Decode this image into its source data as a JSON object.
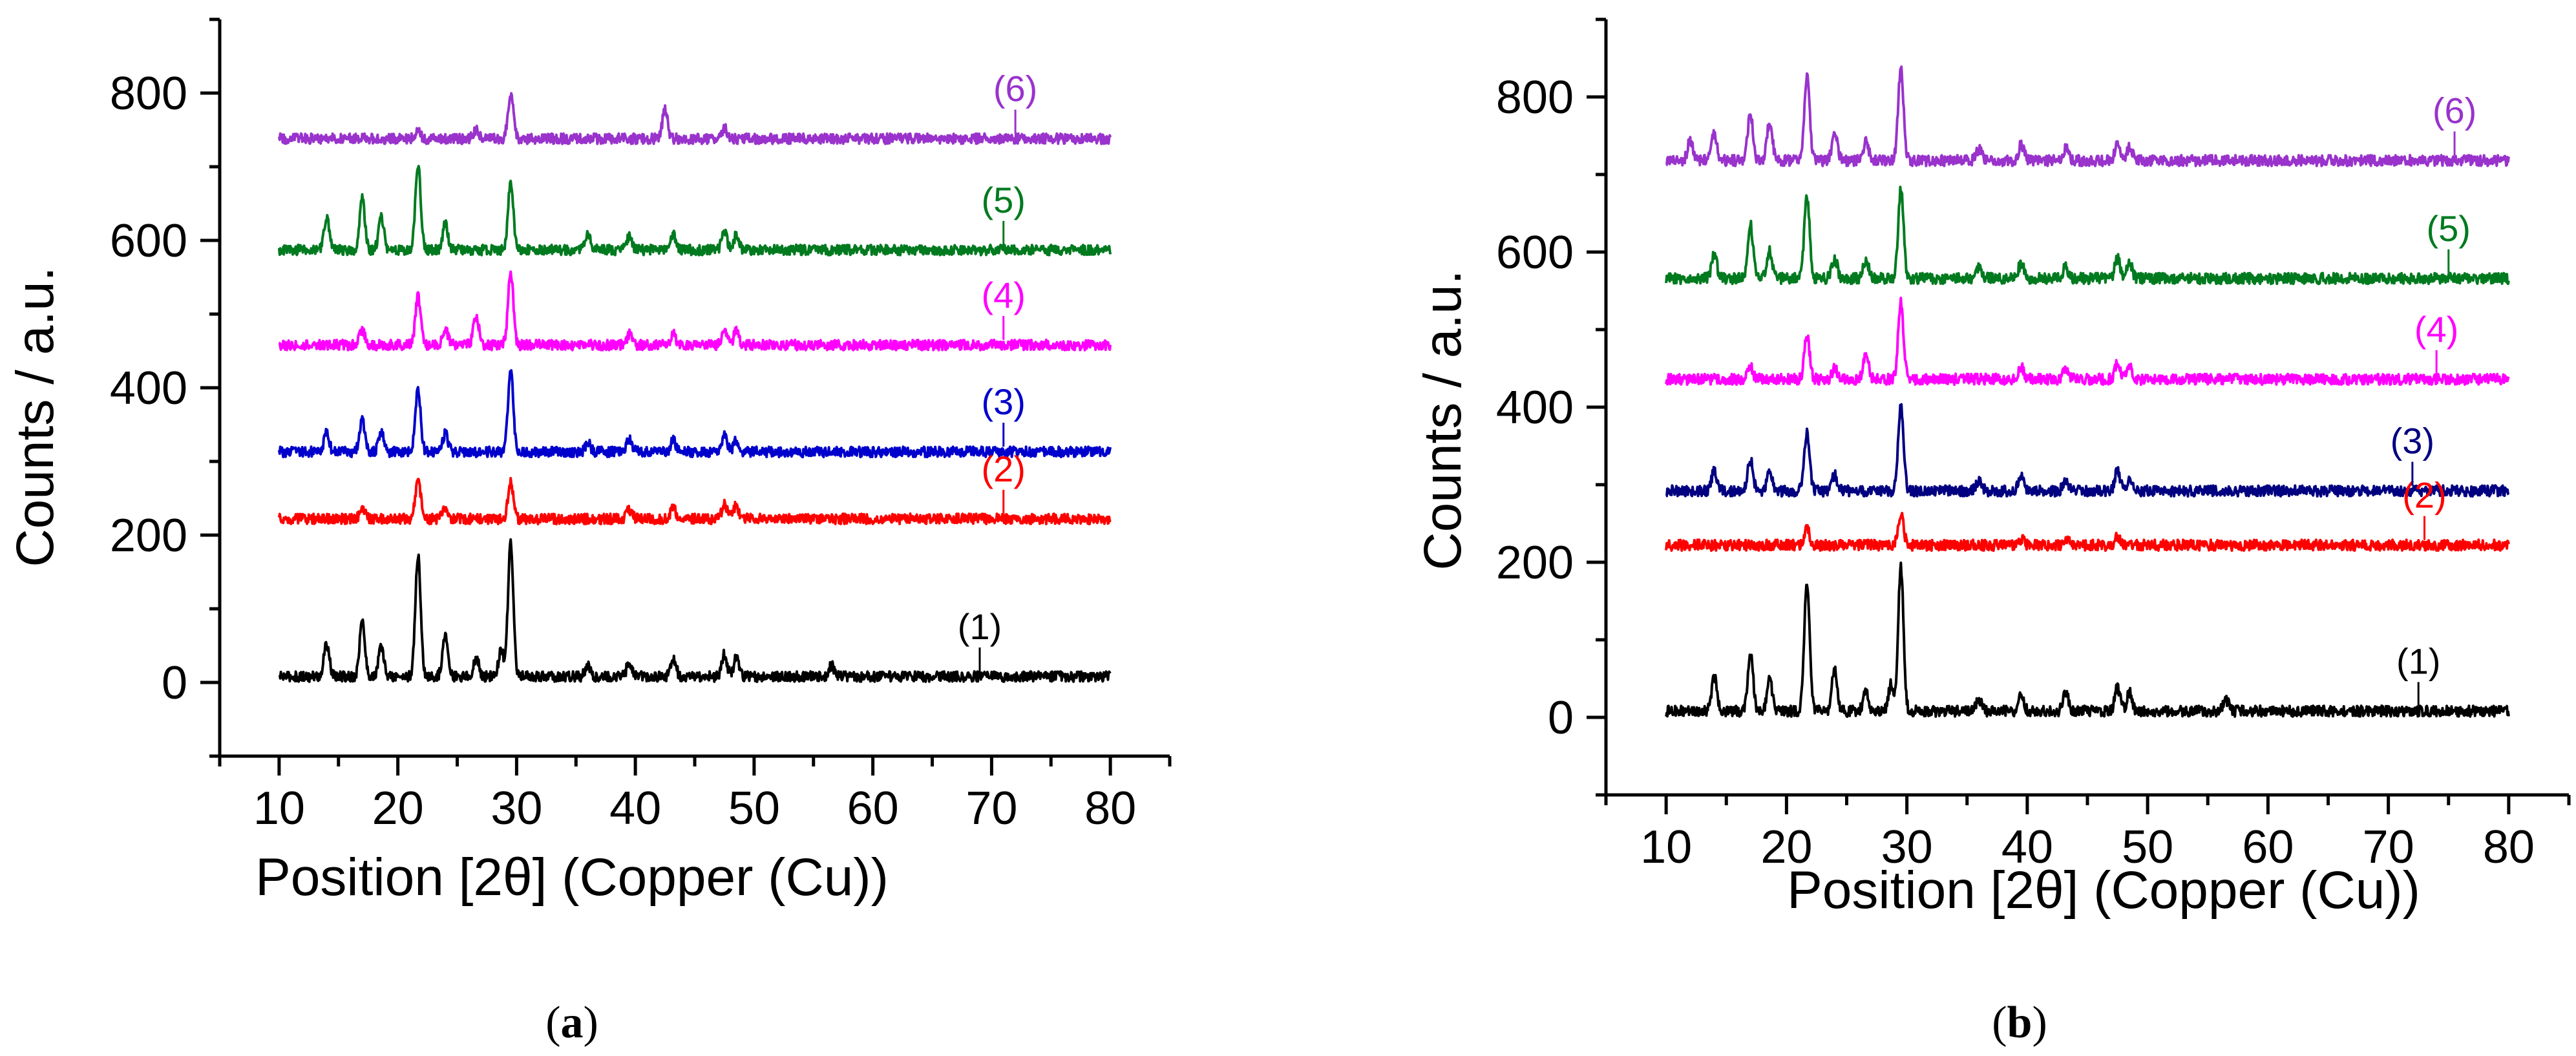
{
  "chart_data": [
    {
      "type": "line",
      "panel_label": "a",
      "title": "",
      "xlabel": "Position [2θ] (Copper (Cu))",
      "ylabel": "Counts / a.u.",
      "xlim": [
        5,
        85
      ],
      "ylim": [
        -100,
        900
      ],
      "x_ticks": [
        10,
        20,
        30,
        40,
        50,
        60,
        70,
        80
      ],
      "y_ticks": [
        0,
        200,
        400,
        600,
        800
      ],
      "grid": false,
      "series": [
        {
          "name": "(1)",
          "color": "#000000",
          "baseline": 8,
          "label_x": 69,
          "peaks": [
            [
              14,
              45
            ],
            [
              17,
              75
            ],
            [
              18.6,
              40
            ],
            [
              21.7,
              165
            ],
            [
              24,
              60
            ],
            [
              26.6,
              25
            ],
            [
              28.7,
              35
            ],
            [
              29.5,
              185
            ],
            [
              36,
              15
            ],
            [
              39.5,
              20
            ],
            [
              43.2,
              25
            ],
            [
              47.5,
              30
            ],
            [
              48.5,
              25
            ],
            [
              56.5,
              15
            ]
          ]
        },
        {
          "name": "(2)",
          "color": "#ff0000",
          "baseline": 222,
          "label_x": 71,
          "peaks": [
            [
              17,
              15
            ],
            [
              21.7,
              55
            ],
            [
              24,
              15
            ],
            [
              29.5,
              50
            ],
            [
              39.5,
              12
            ],
            [
              43.2,
              15
            ],
            [
              47.5,
              20
            ],
            [
              48.5,
              18
            ]
          ]
        },
        {
          "name": "(3)",
          "color": "#0000cc",
          "baseline": 313,
          "label_x": 71,
          "peaks": [
            [
              14,
              25
            ],
            [
              17,
              45
            ],
            [
              18.6,
              25
            ],
            [
              21.7,
              85
            ],
            [
              24,
              25
            ],
            [
              29.5,
              110
            ],
            [
              36,
              12
            ],
            [
              39.5,
              18
            ],
            [
              43.2,
              15
            ],
            [
              47.5,
              25
            ],
            [
              48.5,
              15
            ]
          ]
        },
        {
          "name": "(4)",
          "color": "#ff00ff",
          "baseline": 458,
          "label_x": 71,
          "peaks": [
            [
              17,
              20
            ],
            [
              21.7,
              65
            ],
            [
              24,
              20
            ],
            [
              26.6,
              40
            ],
            [
              29.5,
              100
            ],
            [
              39.5,
              15
            ],
            [
              43.2,
              15
            ],
            [
              47.5,
              20
            ],
            [
              48.5,
              18
            ]
          ]
        },
        {
          "name": "(5)",
          "color": "#007a1f",
          "baseline": 587,
          "label_x": 71,
          "peaks": [
            [
              14,
              45
            ],
            [
              17,
              70
            ],
            [
              18.6,
              45
            ],
            [
              21.7,
              115
            ],
            [
              24,
              35
            ],
            [
              29.5,
              90
            ],
            [
              36,
              20
            ],
            [
              39.5,
              20
            ],
            [
              43.2,
              20
            ],
            [
              47.5,
              25
            ],
            [
              48.5,
              20
            ]
          ]
        },
        {
          "name": "(6)",
          "color": "#9933cc",
          "baseline": 738,
          "label_x": 72,
          "peaks": [
            [
              21.7,
              12
            ],
            [
              26.6,
              12
            ],
            [
              29.5,
              60
            ],
            [
              42.5,
              40
            ],
            [
              47.5,
              15
            ]
          ]
        }
      ]
    },
    {
      "type": "line",
      "panel_label": "b",
      "title": "",
      "xlabel": "Position [2θ] (Copper (Cu))",
      "ylabel": "Counts / a.u.",
      "xlim": [
        5,
        85
      ],
      "ylim": [
        -100,
        900
      ],
      "x_ticks": [
        10,
        20,
        30,
        40,
        50,
        60,
        70,
        80
      ],
      "y_ticks": [
        0,
        200,
        400,
        600,
        800
      ],
      "grid": false,
      "series": [
        {
          "name": "(1)",
          "color": "#000000",
          "baseline": 8,
          "label_x": 72.5,
          "peaks": [
            [
              14,
              45
            ],
            [
              17,
              75
            ],
            [
              18.6,
              40
            ],
            [
              21.7,
              165
            ],
            [
              24,
              55
            ],
            [
              26.6,
              25
            ],
            [
              28.7,
              35
            ],
            [
              29.5,
              185
            ],
            [
              36,
              15
            ],
            [
              39.5,
              20
            ],
            [
              43.2,
              25
            ],
            [
              47.5,
              30
            ],
            [
              48.5,
              25
            ],
            [
              56.5,
              15
            ]
          ]
        },
        {
          "name": "(2)",
          "color": "#ff0000",
          "baseline": 222,
          "label_x": 73,
          "peaks": [
            [
              21.7,
              20
            ],
            [
              29.5,
              40
            ],
            [
              39.5,
              8
            ],
            [
              43.2,
              8
            ],
            [
              47.5,
              10
            ]
          ]
        },
        {
          "name": "(3)",
          "color": "#000080",
          "baseline": 292,
          "label_x": 72,
          "peaks": [
            [
              14,
              25
            ],
            [
              17,
              40
            ],
            [
              18.6,
              25
            ],
            [
              21.7,
              75
            ],
            [
              24,
              20
            ],
            [
              29.5,
              110
            ],
            [
              36,
              12
            ],
            [
              39.5,
              18
            ],
            [
              43.2,
              15
            ],
            [
              47.5,
              25
            ],
            [
              48.5,
              15
            ]
          ]
        },
        {
          "name": "(4)",
          "color": "#ff00ff",
          "baseline": 436,
          "label_x": 74,
          "peaks": [
            [
              17,
              15
            ],
            [
              21.7,
              55
            ],
            [
              24,
              15
            ],
            [
              26.6,
              35
            ],
            [
              29.5,
              100
            ],
            [
              39.5,
              15
            ],
            [
              43.2,
              15
            ],
            [
              47.5,
              20
            ],
            [
              48.5,
              15
            ]
          ]
        },
        {
          "name": "(5)",
          "color": "#007a1f",
          "baseline": 566,
          "label_x": 75,
          "peaks": [
            [
              14,
              30
            ],
            [
              17,
              70
            ],
            [
              18.6,
              35
            ],
            [
              21.7,
              105
            ],
            [
              24,
              25
            ],
            [
              26.6,
              25
            ],
            [
              29.5,
              115
            ],
            [
              36,
              15
            ],
            [
              39.5,
              20
            ],
            [
              43.2,
              15
            ],
            [
              47.5,
              25
            ],
            [
              48.5,
              20
            ]
          ]
        },
        {
          "name": "(6)",
          "color": "#9933cc",
          "baseline": 718,
          "label_x": 75.5,
          "peaks": [
            [
              12,
              25
            ],
            [
              14,
              35
            ],
            [
              17,
              60
            ],
            [
              18.6,
              50
            ],
            [
              21.7,
              110
            ],
            [
              24,
              35
            ],
            [
              26.6,
              25
            ],
            [
              29.5,
              120
            ],
            [
              36,
              15
            ],
            [
              39.5,
              20
            ],
            [
              43.2,
              15
            ],
            [
              47.5,
              20
            ],
            [
              48.5,
              18
            ]
          ]
        }
      ]
    }
  ]
}
